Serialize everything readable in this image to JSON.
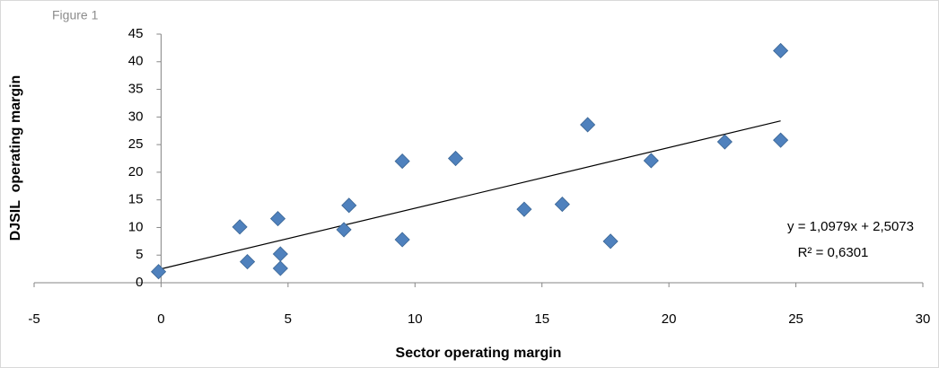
{
  "chart_data": {
    "type": "scatter",
    "title": "Figure 1",
    "x_label": "Sector operating margin",
    "y_label": "DJSIL  operating margin",
    "color": "#4f81bd",
    "x": [
      -0.1,
      3.1,
      3.4,
      4.6,
      4.7,
      4.7,
      7.2,
      7.4,
      9.5,
      9.5,
      11.6,
      14.3,
      15.8,
      16.8,
      17.7,
      19.3,
      22.2,
      24.4,
      24.4
    ],
    "values": [
      2,
      10.1,
      3.8,
      11.6,
      5.2,
      2.6,
      9.6,
      14,
      7.8,
      22,
      22.5,
      13.3,
      14.2,
      28.6,
      7.5,
      22.1,
      25.5,
      25.8,
      42
    ],
    "xlim": [
      -5,
      30
    ],
    "xticks": [
      -5,
      0,
      5,
      10,
      15,
      20,
      25,
      30
    ],
    "ylim": [
      0,
      45
    ],
    "yticks": [
      0,
      5,
      10,
      15,
      20,
      25,
      30,
      35,
      40,
      45
    ],
    "trendline": {
      "slope": 1.0979,
      "intercept": 2.5073,
      "equation": "y = 1,0979x + 2,5073",
      "r_squared": "R² = 0,6301"
    }
  }
}
